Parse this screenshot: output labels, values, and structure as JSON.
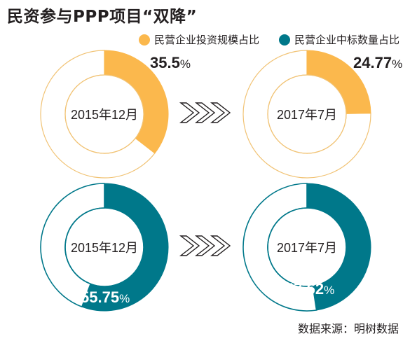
{
  "title": "民资参与PPP项目“双降”",
  "legend": [
    {
      "label": "民营企业投资规模占比",
      "color": "#fbb84d"
    },
    {
      "label": "民营企业中标数量占比",
      "color": "#00788a"
    }
  ],
  "source": "数据来源：明树数据",
  "colors": {
    "ring_outline_light": "#f1c375",
    "ring_remainder_dark": "#ffffff",
    "arrow": "#231f20"
  },
  "chart_data": [
    {
      "type": "pie",
      "variant": "donut",
      "series": "民营企业投资规模占比",
      "period": "2015年12月",
      "value": 35.5,
      "value_label": "35.5",
      "unit": "%",
      "color": "#fbb84d"
    },
    {
      "type": "pie",
      "variant": "donut",
      "series": "民营企业投资规模占比",
      "period": "2017年7月",
      "value": 24.77,
      "value_label": "24.77",
      "unit": "%",
      "color": "#fbb84d"
    },
    {
      "type": "pie",
      "variant": "donut",
      "series": "民营企业中标数量占比",
      "period": "2015年12月",
      "value": 55.75,
      "value_label": "55.75",
      "unit": "%",
      "color": "#00788a"
    },
    {
      "type": "pie",
      "variant": "donut",
      "series": "民营企业中标数量占比",
      "period": "2017年7月",
      "value": 47.62,
      "value_label": "47.62",
      "unit": "%",
      "color": "#00788a"
    }
  ]
}
